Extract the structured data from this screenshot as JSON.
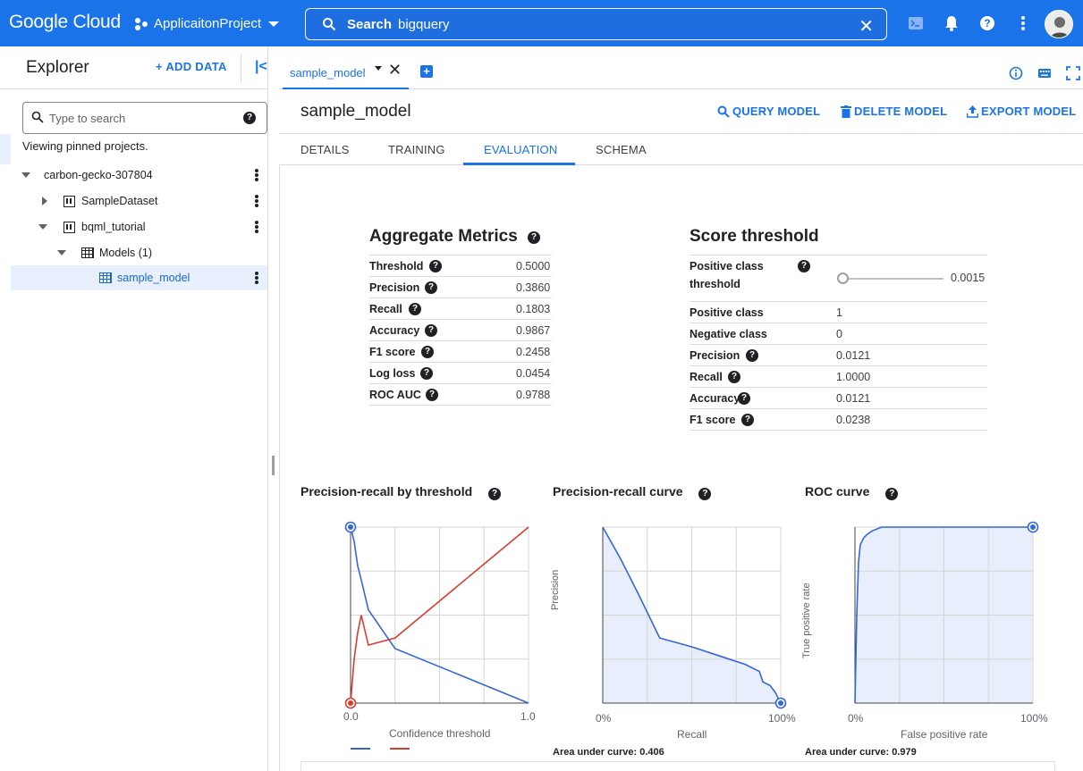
{
  "topbar": {
    "logo": "Google Cloud",
    "project": "ApplicaitonProject",
    "search_label": "Search",
    "search_value": "bigquery",
    "icons": [
      "cloud-shell-icon",
      "bell-icon",
      "help-icon",
      "more-vert-icon",
      "avatar"
    ]
  },
  "explorer": {
    "title": "Explorer",
    "add_data": "ADD DATA",
    "search_placeholder": "Type to search",
    "pinned_text": "Viewing pinned projects.",
    "tree": {
      "project": "carbon-gecko-307804",
      "dataset1": "SampleDataset",
      "dataset2": "bqml_tutorial",
      "models": "Models (1)",
      "model": "sample_model"
    }
  },
  "tabs": {
    "active": "sample_model"
  },
  "model": {
    "title": "sample_model",
    "actions": {
      "query": "QUERY MODEL",
      "delete": "DELETE MODEL",
      "export": "EXPORT MODEL"
    },
    "subtabs": [
      "DETAILS",
      "TRAINING",
      "EVALUATION",
      "SCHEMA"
    ]
  },
  "aggregate": {
    "title": "Aggregate Metrics",
    "rows": [
      {
        "label": "Threshold",
        "value": "0.5000"
      },
      {
        "label": "Precision",
        "value": "0.3860"
      },
      {
        "label": "Recall",
        "value": "0.1803"
      },
      {
        "label": "Accuracy",
        "value": "0.9867"
      },
      {
        "label": "F1 score",
        "value": "0.2458"
      },
      {
        "label": "Log loss",
        "value": "0.0454"
      },
      {
        "label": "ROC AUC",
        "value": "0.9788"
      }
    ]
  },
  "score": {
    "title": "Score threshold",
    "threshold_label_1": "Positive class",
    "threshold_label_2": "threshold",
    "threshold_value": "0.0015",
    "slider_position": 0.0015,
    "rows": [
      {
        "label": "Positive class",
        "value": "1"
      },
      {
        "label": "Negative class",
        "value": "0"
      },
      {
        "label": "Precision",
        "value": "0.0121"
      },
      {
        "label": "Recall",
        "value": "1.0000"
      },
      {
        "label": "Accuracy",
        "value": "0.0121"
      },
      {
        "label": "F1 score",
        "value": "0.0238"
      }
    ]
  },
  "charts": {
    "pr_threshold": {
      "title": "Precision-recall by threshold",
      "xlabel": "Confidence threshold",
      "xmin": "0.0",
      "xmax": "1.0"
    },
    "pr_curve": {
      "title": "Precision-recall curve",
      "xlabel": "Recall",
      "ylabel": "Precision",
      "xmin": "0%",
      "xmax": "100%",
      "auc": "Area under curve: 0.406"
    },
    "roc": {
      "title": "ROC curve",
      "xlabel": "False positive rate",
      "ylabel": "True positive rate",
      "xmin": "0%",
      "xmax": "100%",
      "auc": "Area under curve: 0.979"
    }
  },
  "chart_data": [
    {
      "type": "line",
      "title": "Precision-recall by threshold",
      "xlabel": "Confidence threshold",
      "xlim": [
        0,
        1
      ],
      "ylim": [
        0,
        1
      ],
      "series": [
        {
          "color": "#3367d6",
          "x": [
            0,
            0.02,
            0.04,
            0.06,
            0.1,
            0.25,
            1.0
          ],
          "y": [
            1.0,
            0.92,
            0.78,
            0.7,
            0.53,
            0.31,
            0.0
          ]
        },
        {
          "color": "#d23f31",
          "x": [
            0,
            0.02,
            0.04,
            0.06,
            0.1,
            0.25,
            1.0
          ],
          "y": [
            0.0,
            0.25,
            0.4,
            0.5,
            0.33,
            0.37,
            1.0
          ]
        }
      ],
      "markers": [
        {
          "x": 0,
          "y": 1,
          "color": "#3367d6"
        },
        {
          "x": 0,
          "y": 0,
          "color": "#d23f31"
        }
      ]
    },
    {
      "type": "area",
      "title": "Precision-recall curve",
      "xlabel": "Recall",
      "ylabel": "Precision",
      "xlim": [
        0,
        1
      ],
      "ylim": [
        0,
        1
      ],
      "series": [
        {
          "color": "#3367d6",
          "x": [
            0.0,
            0.1,
            0.2,
            0.32,
            0.5,
            0.65,
            0.8,
            0.88,
            0.9,
            0.94,
            0.97,
            1.0
          ],
          "y": [
            1.0,
            0.82,
            0.62,
            0.37,
            0.32,
            0.27,
            0.22,
            0.18,
            0.12,
            0.1,
            0.06,
            0.0
          ]
        }
      ],
      "markers": [
        {
          "x": 1.0,
          "y": 0.0,
          "color": "#3367d6"
        }
      ],
      "auc": 0.406
    },
    {
      "type": "area",
      "title": "ROC curve",
      "xlabel": "False positive rate",
      "ylabel": "True positive rate",
      "xlim": [
        0,
        1
      ],
      "ylim": [
        0,
        1
      ],
      "series": [
        {
          "color": "#3367d6",
          "x": [
            0.0,
            0.01,
            0.02,
            0.03,
            0.05,
            0.07,
            0.1,
            0.15,
            1.0
          ],
          "y": [
            0.0,
            0.5,
            0.8,
            0.9,
            0.94,
            0.96,
            0.98,
            1.0,
            1.0
          ]
        }
      ],
      "markers": [
        {
          "x": 1.0,
          "y": 1.0,
          "color": "#3367d6"
        }
      ],
      "auc": 0.979
    }
  ]
}
